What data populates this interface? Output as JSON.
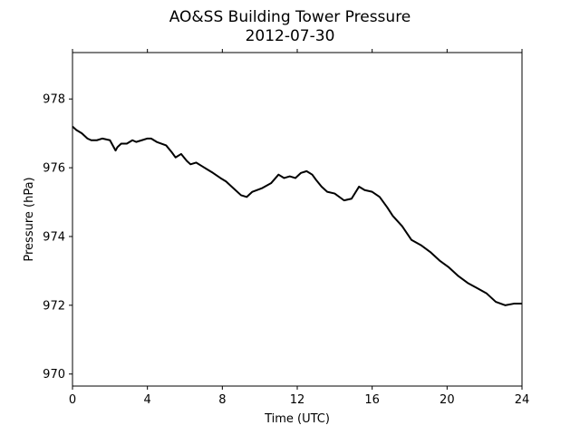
{
  "chart_data": {
    "type": "line",
    "title": "AO&SS Building Tower Pressure",
    "subtitle": "2012-07-30",
    "xlabel": "Time (UTC)",
    "ylabel": "Pressure (hPa)",
    "xlim": [
      0,
      24
    ],
    "ylim": [
      969.65,
      979.35
    ],
    "xticks": [
      0,
      4,
      8,
      12,
      16,
      20,
      24
    ],
    "yticks": [
      970,
      972,
      974,
      976,
      978
    ],
    "grid": false,
    "line_color": "#000000",
    "series": [
      {
        "x": [
          0,
          0.2,
          0.5,
          0.8,
          1.0,
          1.3,
          1.6,
          2.0,
          2.3,
          2.4,
          2.6,
          2.9,
          3.2,
          3.4,
          3.7,
          4.0,
          4.2,
          4.5,
          5.0,
          5.3,
          5.5,
          5.8,
          6.1,
          6.3,
          6.6,
          6.9,
          7.2,
          7.5,
          7.9,
          8.2,
          8.5,
          9.0,
          9.3,
          9.6,
          10.1,
          10.6,
          11.0,
          11.3,
          11.6,
          11.9,
          12.2,
          12.5,
          12.8,
          13.0,
          13.3,
          13.6,
          14.0,
          14.5,
          14.9,
          15.3,
          15.6,
          16.0,
          16.4,
          16.8,
          17.1,
          17.6,
          18.1,
          18.6,
          19.1,
          19.6,
          20.1,
          20.6,
          21.1,
          21.6,
          22.1,
          22.6,
          23.1,
          23.6,
          24.0
        ],
        "values": [
          977.2,
          977.1,
          977.0,
          976.85,
          976.8,
          976.8,
          976.85,
          976.8,
          976.5,
          976.6,
          976.7,
          976.7,
          976.8,
          976.75,
          976.8,
          976.85,
          976.85,
          976.75,
          976.65,
          976.45,
          976.3,
          976.4,
          976.2,
          976.1,
          976.15,
          976.05,
          975.95,
          975.85,
          975.7,
          975.6,
          975.45,
          975.2,
          975.15,
          975.3,
          975.4,
          975.55,
          975.8,
          975.7,
          975.75,
          975.7,
          975.85,
          975.9,
          975.8,
          975.65,
          975.45,
          975.3,
          975.25,
          975.05,
          975.1,
          975.45,
          975.35,
          975.3,
          975.15,
          974.85,
          974.6,
          974.3,
          973.9,
          973.75,
          973.55,
          973.3,
          973.1,
          972.85,
          972.65,
          972.5,
          972.35,
          972.1,
          972.0,
          972.05,
          972.05
        ]
      }
    ]
  }
}
